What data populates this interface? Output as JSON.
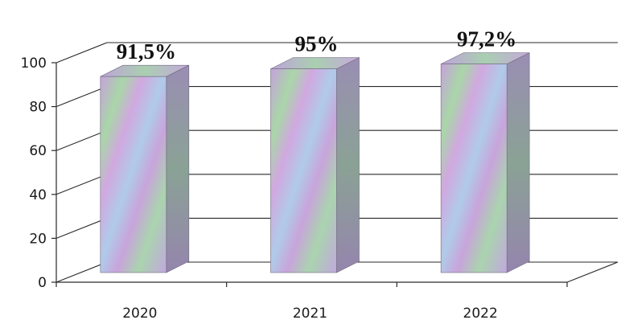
{
  "chart_data": {
    "type": "bar",
    "style": "3d-column",
    "categories": [
      "2020",
      "2021",
      "2022"
    ],
    "values": [
      91.5,
      95,
      97.2
    ],
    "data_labels": [
      "91,5%",
      "95%",
      "97,2%"
    ],
    "y_ticks": [
      "0",
      "20",
      "40",
      "60",
      "80",
      "100"
    ],
    "ylim": [
      0,
      100
    ],
    "grid": true,
    "legend": "none",
    "colors": {
      "bar_front_a": "#c8a6dd",
      "bar_front_b": "#a7d3a9",
      "bar_front_c": "#b4c9ee",
      "bar_top": "#c9b1dc",
      "bar_side": "#8f86a8",
      "grid": "#2a2a2a"
    }
  }
}
